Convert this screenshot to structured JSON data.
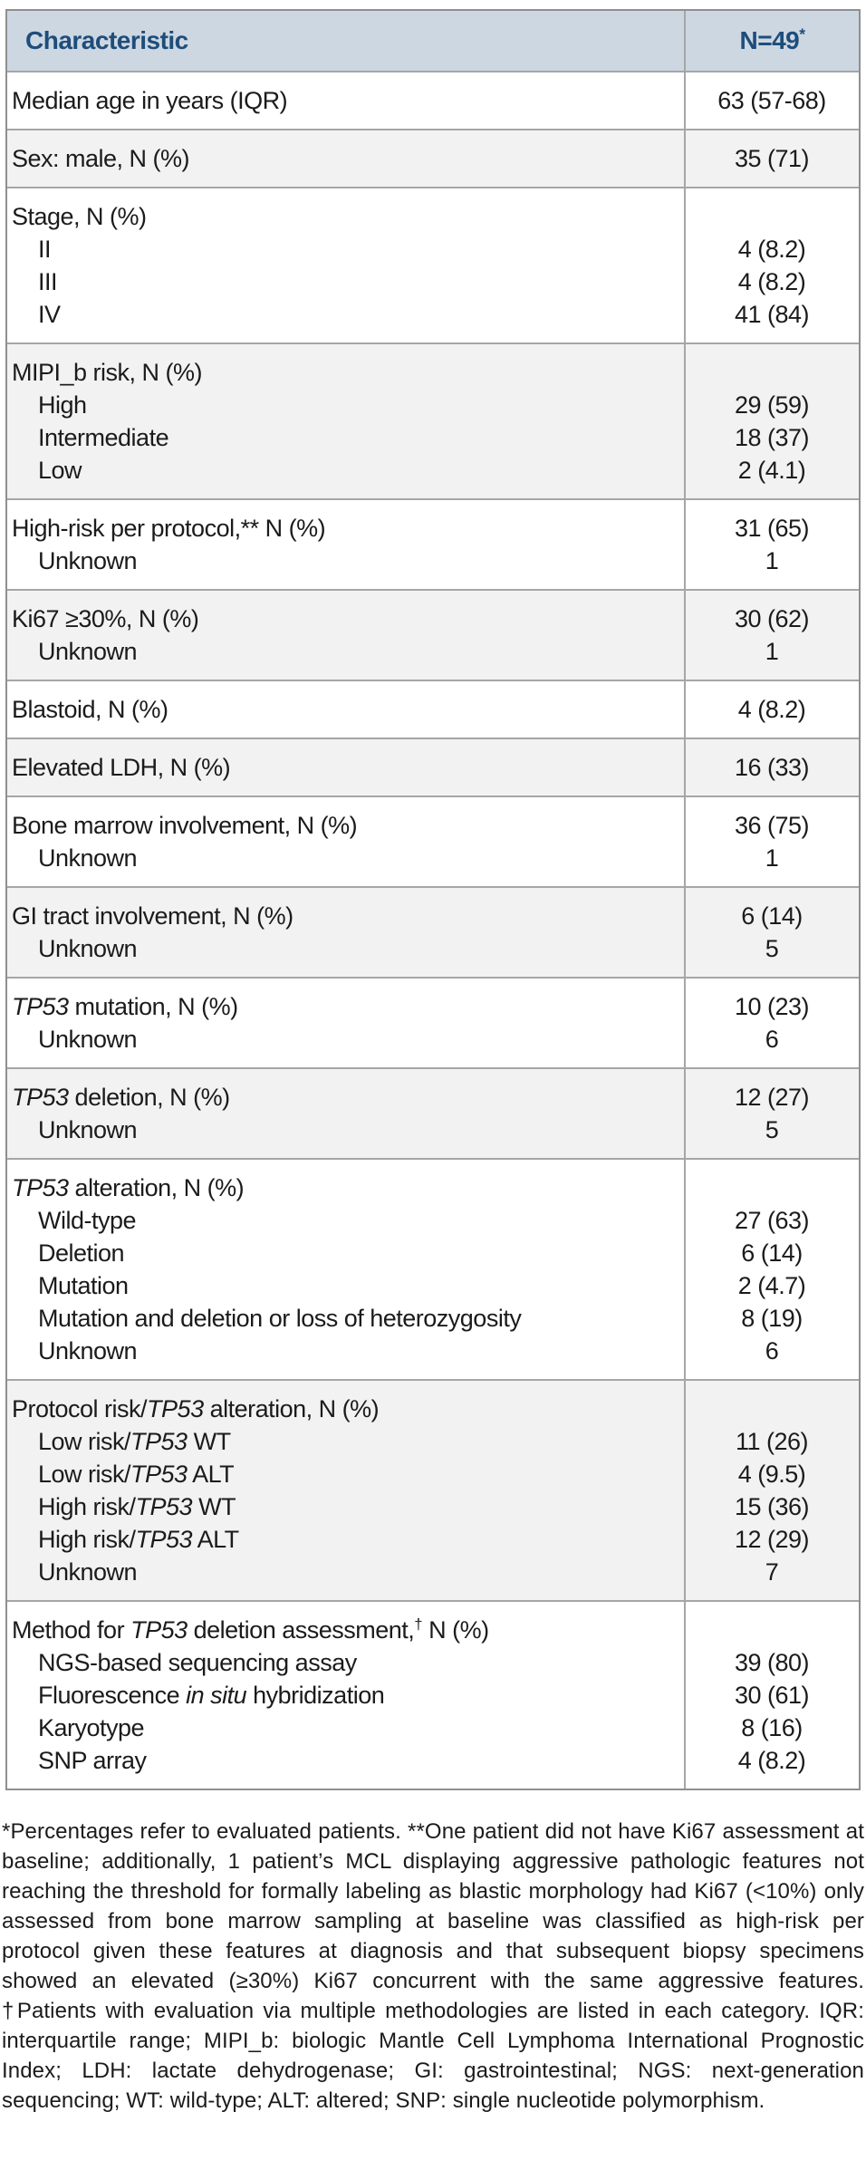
{
  "colors": {
    "header_bg": "#cdd7e1",
    "header_text": "#1e4d7b",
    "row_shaded_bg": "#f2f2f2",
    "row_bg": "#ffffff",
    "grid_border": "#a6a6a6",
    "outer_border": "#8f8f8f",
    "body_text": "#1b1b1b"
  },
  "table": {
    "header": {
      "characteristic": "Characteristic",
      "n_label": "N=49",
      "n_sup": "*"
    },
    "rows": [
      {
        "shaded": false,
        "lines": [
          {
            "indent": false,
            "label": [
              {
                "t": "Median age in years (IQR)"
              }
            ],
            "value": "63 (57-68)"
          }
        ]
      },
      {
        "shaded": true,
        "lines": [
          {
            "indent": false,
            "label": [
              {
                "t": "Sex: male, N (%)"
              }
            ],
            "value": "35 (71)"
          }
        ]
      },
      {
        "shaded": false,
        "lines": [
          {
            "indent": false,
            "label": [
              {
                "t": "Stage, N (%)"
              }
            ],
            "value": ""
          },
          {
            "indent": true,
            "label": [
              {
                "t": "II"
              }
            ],
            "value": "4 (8.2)"
          },
          {
            "indent": true,
            "label": [
              {
                "t": "III"
              }
            ],
            "value": "4 (8.2)"
          },
          {
            "indent": true,
            "label": [
              {
                "t": "IV"
              }
            ],
            "value": "41 (84)"
          }
        ]
      },
      {
        "shaded": true,
        "lines": [
          {
            "indent": false,
            "label": [
              {
                "t": "MIPI_b risk, N (%)"
              }
            ],
            "value": ""
          },
          {
            "indent": true,
            "label": [
              {
                "t": "High"
              }
            ],
            "value": "29 (59)"
          },
          {
            "indent": true,
            "label": [
              {
                "t": "Intermediate"
              }
            ],
            "value": "18 (37)"
          },
          {
            "indent": true,
            "label": [
              {
                "t": "Low"
              }
            ],
            "value": "2 (4.1)"
          }
        ]
      },
      {
        "shaded": false,
        "lines": [
          {
            "indent": false,
            "label": [
              {
                "t": "High-risk per protocol,** N (%)"
              }
            ],
            "value": "31 (65)"
          },
          {
            "indent": true,
            "label": [
              {
                "t": "Unknown"
              }
            ],
            "value": "1"
          }
        ]
      },
      {
        "shaded": true,
        "lines": [
          {
            "indent": false,
            "label": [
              {
                "t": "Ki67 ≥30%, N (%)"
              }
            ],
            "value": "30 (62)"
          },
          {
            "indent": true,
            "label": [
              {
                "t": "Unknown"
              }
            ],
            "value": "1"
          }
        ]
      },
      {
        "shaded": false,
        "lines": [
          {
            "indent": false,
            "label": [
              {
                "t": "Blastoid, N (%)"
              }
            ],
            "value": "4 (8.2)"
          }
        ]
      },
      {
        "shaded": true,
        "lines": [
          {
            "indent": false,
            "label": [
              {
                "t": "Elevated LDH, N (%)"
              }
            ],
            "value": "16 (33)"
          }
        ]
      },
      {
        "shaded": false,
        "lines": [
          {
            "indent": false,
            "label": [
              {
                "t": "Bone marrow involvement, N (%)"
              }
            ],
            "value": "36 (75)"
          },
          {
            "indent": true,
            "label": [
              {
                "t": "Unknown"
              }
            ],
            "value": "1"
          }
        ]
      },
      {
        "shaded": true,
        "lines": [
          {
            "indent": false,
            "label": [
              {
                "t": "GI tract involvement, N (%)"
              }
            ],
            "value": "6 (14)"
          },
          {
            "indent": true,
            "label": [
              {
                "t": "Unknown"
              }
            ],
            "value": "5"
          }
        ]
      },
      {
        "shaded": false,
        "lines": [
          {
            "indent": false,
            "label": [
              {
                "t": "TP53",
                "i": true
              },
              {
                "t": " mutation, N (%)"
              }
            ],
            "value": "10 (23)"
          },
          {
            "indent": true,
            "label": [
              {
                "t": "Unknown"
              }
            ],
            "value": "6"
          }
        ]
      },
      {
        "shaded": true,
        "lines": [
          {
            "indent": false,
            "label": [
              {
                "t": "TP53",
                "i": true
              },
              {
                "t": " deletion, N (%)"
              }
            ],
            "value": "12 (27)"
          },
          {
            "indent": true,
            "label": [
              {
                "t": "Unknown"
              }
            ],
            "value": "5"
          }
        ]
      },
      {
        "shaded": false,
        "lines": [
          {
            "indent": false,
            "label": [
              {
                "t": "TP53",
                "i": true
              },
              {
                "t": " alteration, N (%)"
              }
            ],
            "value": ""
          },
          {
            "indent": true,
            "label": [
              {
                "t": "Wild-type"
              }
            ],
            "value": "27 (63)"
          },
          {
            "indent": true,
            "label": [
              {
                "t": "Deletion"
              }
            ],
            "value": "6 (14)"
          },
          {
            "indent": true,
            "label": [
              {
                "t": "Mutation"
              }
            ],
            "value": "2 (4.7)"
          },
          {
            "indent": true,
            "label": [
              {
                "t": "Mutation and deletion or loss of heterozygosity"
              }
            ],
            "value": "8 (19)"
          },
          {
            "indent": true,
            "label": [
              {
                "t": "Unknown"
              }
            ],
            "value": "6"
          }
        ]
      },
      {
        "shaded": true,
        "lines": [
          {
            "indent": false,
            "label": [
              {
                "t": "Protocol risk/"
              },
              {
                "t": "TP53",
                "i": true
              },
              {
                "t": " alteration, N (%)"
              }
            ],
            "value": ""
          },
          {
            "indent": true,
            "label": [
              {
                "t": "Low risk/"
              },
              {
                "t": "TP53",
                "i": true
              },
              {
                "t": " WT"
              }
            ],
            "value": "11 (26)"
          },
          {
            "indent": true,
            "label": [
              {
                "t": "Low risk/"
              },
              {
                "t": "TP53",
                "i": true
              },
              {
                "t": " ALT"
              }
            ],
            "value": "4 (9.5)"
          },
          {
            "indent": true,
            "label": [
              {
                "t": "High risk/"
              },
              {
                "t": "TP53",
                "i": true
              },
              {
                "t": " WT"
              }
            ],
            "value": "15 (36)"
          },
          {
            "indent": true,
            "label": [
              {
                "t": "High risk/"
              },
              {
                "t": "TP53",
                "i": true
              },
              {
                "t": " ALT"
              }
            ],
            "value": "12 (29)"
          },
          {
            "indent": true,
            "label": [
              {
                "t": "Unknown"
              }
            ],
            "value": "7"
          }
        ]
      },
      {
        "shaded": false,
        "lines": [
          {
            "indent": false,
            "label": [
              {
                "t": "Method for "
              },
              {
                "t": "TP53",
                "i": true
              },
              {
                "t": " deletion assessment,"
              },
              {
                "t": "†",
                "sup": true
              },
              {
                "t": " N (%)"
              }
            ],
            "value": ""
          },
          {
            "indent": true,
            "label": [
              {
                "t": "NGS-based sequencing assay"
              }
            ],
            "value": "39 (80)"
          },
          {
            "indent": true,
            "label": [
              {
                "t": "Fluorescence "
              },
              {
                "t": "in situ",
                "i": true
              },
              {
                "t": " hybridization"
              }
            ],
            "value": "30 (61)"
          },
          {
            "indent": true,
            "label": [
              {
                "t": "Karyotype"
              }
            ],
            "value": "8 (16)"
          },
          {
            "indent": true,
            "label": [
              {
                "t": "SNP array"
              }
            ],
            "value": "4 (8.2)"
          }
        ]
      }
    ]
  },
  "footnote": {
    "text": "*Percentages refer to evaluated patients. **One patient did not have Ki67 assessment at baseline; additionally, 1 patient’s MCL displaying aggressive pathologic features not reaching the threshold for formally labeling as blastic morphology had Ki67 (<10%) only assessed from bone marrow sampling at baseline was classified as high-risk per protocol given these features at diagnosis and that subsequent biopsy specimens showed an elevated (≥30%) Ki67 concurrent with the same aggressive features. †Patients with evaluation via multiple methodologies are listed in each category. IQR: interquartile range; MIPI_b: biologic Mantle Cell Lymphoma International Prognostic Index; LDH: lactate dehydrogenase; GI: gastrointestinal; NGS: next-generation sequencing; WT: wild-type; ALT: altered; SNP: single nucleotide polymorphism."
  }
}
